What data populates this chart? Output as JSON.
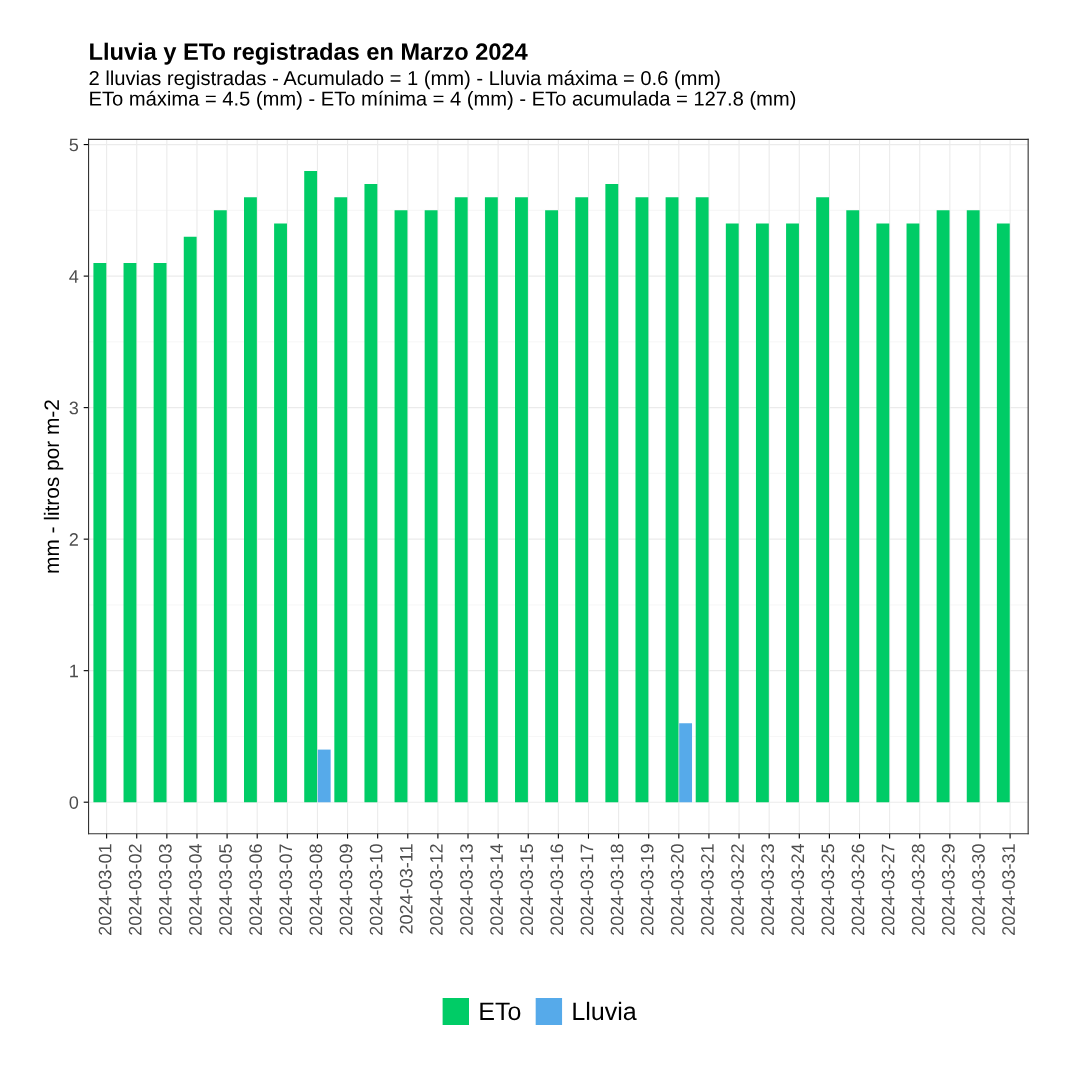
{
  "chart_data": {
    "type": "bar",
    "title": "Lluvia y ETo registradas en Marzo 2024",
    "subtitle": "2 lluvias registradas - Acumulado = 1 (mm) - Lluvia máxima = 0.6 (mm)\nETo máxima = 4.5 (mm) - ETo mínima = 4 (mm) - ETo acumulada = 127.8 (mm)",
    "ylabel": "mm - litros por m-2",
    "categories": [
      "2024-03-01",
      "2024-03-02",
      "2024-03-03",
      "2024-03-04",
      "2024-03-05",
      "2024-03-06",
      "2024-03-07",
      "2024-03-08",
      "2024-03-09",
      "2024-03-10",
      "2024-03-11",
      "2024-03-12",
      "2024-03-13",
      "2024-03-14",
      "2024-03-15",
      "2024-03-16",
      "2024-03-17",
      "2024-03-18",
      "2024-03-19",
      "2024-03-20",
      "2024-03-21",
      "2024-03-22",
      "2024-03-23",
      "2024-03-24",
      "2024-03-25",
      "2024-03-26",
      "2024-03-27",
      "2024-03-28",
      "2024-03-29",
      "2024-03-30",
      "2024-03-31"
    ],
    "series": [
      {
        "name": "ETo",
        "color": "#00cc66",
        "values": [
          4.1,
          4.1,
          4.1,
          4.3,
          4.5,
          4.6,
          4.4,
          4.8,
          4.6,
          4.7,
          4.5,
          4.5,
          4.6,
          4.6,
          4.6,
          4.5,
          4.6,
          4.7,
          4.6,
          4.6,
          4.6,
          4.4,
          4.4,
          4.4,
          4.6,
          4.5,
          4.4,
          4.4,
          4.5,
          4.5,
          4.4
        ]
      },
      {
        "name": "Lluvia",
        "color": "#56aaea",
        "values": [
          null,
          null,
          null,
          null,
          null,
          null,
          null,
          0.4,
          null,
          null,
          null,
          null,
          null,
          null,
          null,
          null,
          null,
          null,
          null,
          0.6,
          null,
          null,
          null,
          null,
          null,
          null,
          null,
          null,
          null,
          null,
          null
        ]
      }
    ],
    "ylim": [
      -0.24,
      5.04
    ],
    "yticks": [
      0,
      1,
      2,
      3,
      4,
      5
    ],
    "grid": true,
    "legend": "bottom"
  }
}
